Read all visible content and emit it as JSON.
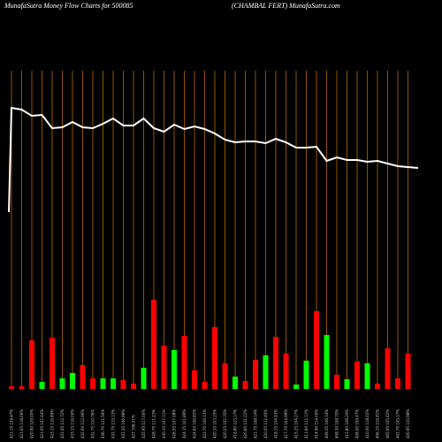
{
  "chart_data": {
    "type": "money-flow",
    "title": "MunafaSutra  Money Flow  Charts for 500085",
    "subtitle": "(CHAMBAL  FERT) MunafaSutra.com",
    "price_color": "#ffffff",
    "grid_color": "#b86a00",
    "ylim": [
      0,
      500
    ],
    "y2lim": [
      0,
      440
    ],
    "price": [
      260,
      378,
      376,
      369,
      370,
      355,
      356,
      362,
      356,
      355,
      360,
      366,
      358,
      358,
      366,
      355,
      351,
      359,
      354,
      357,
      354,
      349,
      342,
      339,
      340,
      340,
      338,
      343,
      339,
      333,
      333,
      334,
      318,
      322,
      319,
      319,
      317,
      318,
      315,
      312,
      311,
      310
    ],
    "volume": [
      3,
      3,
      55,
      8,
      58,
      12,
      18,
      27,
      12,
      12,
      12,
      10,
      6,
      24,
      101,
      49,
      44,
      60,
      21,
      8,
      70,
      29,
      14,
      9,
      33,
      38,
      59,
      40,
      5,
      32,
      88,
      61,
      16,
      11,
      31,
      29,
      6,
      46,
      12,
      40
    ],
    "bar_colors": [
      "red",
      "red",
      "red",
      "lime",
      "red",
      "lime",
      "lime",
      "red",
      "red",
      "lime",
      "lime",
      "red",
      "red",
      "lime",
      "red",
      "red",
      "lime",
      "red",
      "red",
      "red",
      "red",
      "red",
      "lime",
      "red",
      "red",
      "lime",
      "red",
      "red",
      "lime",
      "lime",
      "red",
      "lime",
      "red",
      "lime",
      "red",
      "lime",
      "red",
      "red",
      "red",
      "red"
    ],
    "x_labels": [
      "421.15 134.47%",
      "421.05 118.06%",
      "420.90 129.00%",
      "421.05 102.44%",
      "423.15 116.89%",
      "431.45 112.72%",
      "433.15 116.00%",
      "432.00 112.96%",
      "432.75 110.76%",
      "436.70 121.56%",
      "432.75 115.13%",
      "431.20 106.98%",
      "427 106.01%",
      "425.95 117.00%",
      "428.75 111.23%",
      "430.10 107.11%",
      "428.55 107.08%",
      "424.15 101.89%",
      "424.65 106.83%",
      "422.70 106.13%",
      "420.10 103.25%",
      "420.25 102.35%",
      "418.80 123.17%",
      "420.60 131.22%",
      "421.75 108.14%",
      "420.05 112.40%",
      "418.15 104.93%",
      "417.70 104.99%",
      "415.25 104.27%",
      "411.60 112.11%",
      "414.90 114.00%",
      "409.35 106.14%",
      "408.30 108.70%",
      "411.80 108.20%",
      "408.00 109.47%",
      "410.00 118.02%",
      "406.15 116.81%",
      "405.95 105.62%",
      "402.70 105.17%",
      "400.95 110.98%"
    ]
  }
}
